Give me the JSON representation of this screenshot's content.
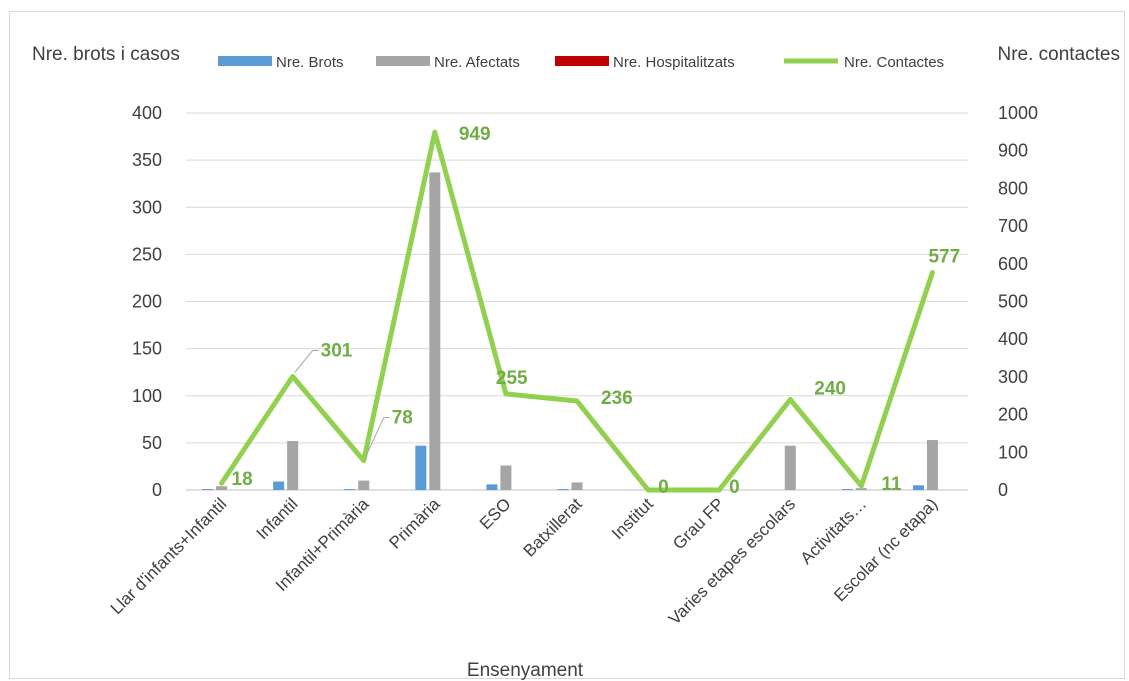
{
  "chart_data": {
    "type": "bar",
    "xlabel": "Ensenyament",
    "ylabel": "Nre. brots i casos",
    "y2label": "Nre. contactes",
    "ylim": [
      0,
      400
    ],
    "y2lim": [
      0,
      1000
    ],
    "yticks": [
      0,
      50,
      100,
      150,
      200,
      250,
      300,
      350,
      400
    ],
    "y2ticks": [
      0,
      100,
      200,
      300,
      400,
      500,
      600,
      700,
      800,
      900,
      1000
    ],
    "grid": true,
    "legend_position": "top",
    "categories": [
      "Llar d'infants+Infantil",
      "Infantil",
      "Infantil+Primària",
      "Primària",
      "ESO",
      "Batxillerat",
      "Institut",
      "Grau FP",
      "Varies etapes escolars",
      "Activitats…",
      "Escolar (nc etapa)"
    ],
    "series": [
      {
        "name": "Nre. Brots",
        "type": "bar",
        "axis": "left",
        "color": "#5b9bd5",
        "values": [
          1,
          9,
          1,
          47,
          6,
          1,
          0,
          0,
          0,
          1,
          5
        ]
      },
      {
        "name": "Nre. Afectats",
        "type": "bar",
        "axis": "left",
        "color": "#a5a5a5",
        "values": [
          4,
          52,
          10,
          337,
          26,
          8,
          0,
          0,
          47,
          2,
          53
        ]
      },
      {
        "name": "Nre. Hospitalitzats",
        "type": "bar",
        "axis": "left",
        "color": "#c00000",
        "values": [
          0,
          0,
          0,
          0,
          0,
          0,
          0,
          0,
          0,
          0,
          0
        ]
      },
      {
        "name": "Nre.  Contactes",
        "type": "line",
        "axis": "right",
        "color": "#92d050",
        "values": [
          18,
          301,
          78,
          949,
          255,
          236,
          0,
          0,
          240,
          11,
          577
        ]
      }
    ],
    "data_labels": [
      "18",
      "301",
      "78",
      "949",
      "255",
      "236",
      "0",
      "0",
      "240",
      "11",
      "577"
    ]
  }
}
